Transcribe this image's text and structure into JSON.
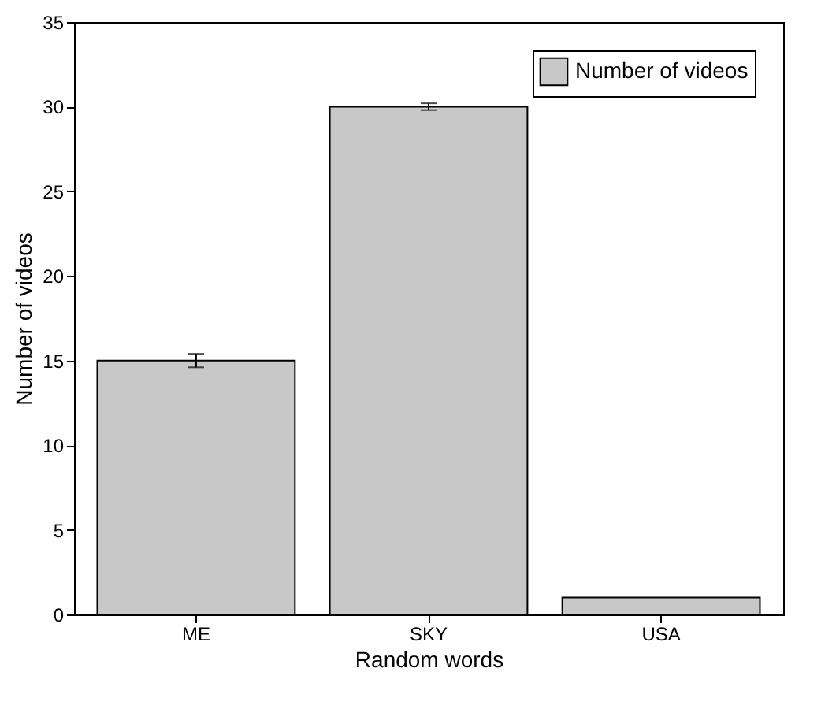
{
  "chart_data": {
    "type": "bar",
    "xlabel": "Random words",
    "ylabel": "Number of videos",
    "categories": [
      "ME",
      "SKY",
      "USA"
    ],
    "series": [
      {
        "name": "Number of videos",
        "color": "#c8c8c8",
        "values": [
          15,
          30,
          1
        ],
        "errors": [
          0.4,
          0.2,
          null
        ]
      }
    ],
    "ylim": [
      0,
      35
    ],
    "yticks": [
      0,
      5,
      10,
      15,
      20,
      25,
      30,
      35
    ],
    "grid": false,
    "legend": "top right"
  }
}
